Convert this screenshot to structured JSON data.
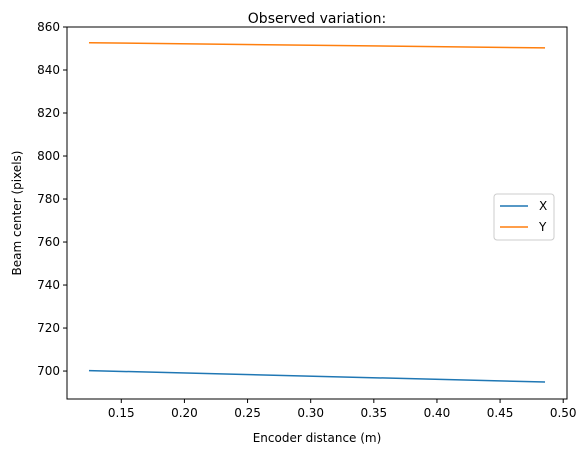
{
  "chart_data": {
    "type": "line",
    "title": "Observed variation:",
    "xlabel": "Encoder distance (m)",
    "ylabel": "Beam center (pixels)",
    "xlim": [
      0.107,
      0.503
    ],
    "ylim": [
      687,
      860
    ],
    "xticks": [
      0.15,
      0.2,
      0.25,
      0.3,
      0.35,
      0.4,
      0.45,
      0.5
    ],
    "xtick_labels": [
      "0.15",
      "0.20",
      "0.25",
      "0.30",
      "0.35",
      "0.40",
      "0.45",
      "0.50"
    ],
    "yticks": [
      700,
      720,
      740,
      760,
      780,
      800,
      820,
      840,
      860
    ],
    "ytick_labels": [
      "700",
      "720",
      "740",
      "760",
      "780",
      "800",
      "820",
      "840",
      "860"
    ],
    "grid": false,
    "legend_position": "center-right",
    "series": [
      {
        "name": "X",
        "color": "#1f77b4",
        "x": [
          0.125,
          0.485
        ],
        "y": [
          700.2,
          694.9
        ]
      },
      {
        "name": "Y",
        "color": "#ff7f0e",
        "x": [
          0.125,
          0.485
        ],
        "y": [
          852.7,
          850.3
        ]
      }
    ]
  }
}
